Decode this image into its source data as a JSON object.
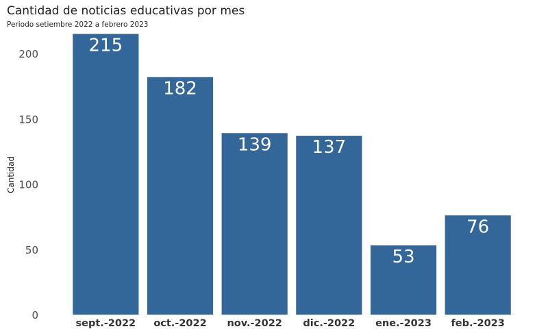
{
  "chart_data": {
    "type": "bar",
    "title": "Cantidad de noticias educativas por mes",
    "subtitle": "Periodo  setiembre  2022  a febrero  2023",
    "xlabel": "",
    "ylabel": "Cantidad",
    "categories": [
      "sept.-2022",
      "oct.-2022",
      "nov.-2022",
      "dic.-2022",
      "ene.-2023",
      "feb.-2023"
    ],
    "values": [
      215,
      182,
      139,
      137,
      53,
      76
    ],
    "ylim": [
      0,
      220
    ],
    "yticks": [
      0,
      50,
      100,
      150,
      200
    ],
    "grid": false,
    "legend": "none",
    "colors": {
      "bar": "#336699",
      "bar_label": "#ffffff"
    }
  }
}
